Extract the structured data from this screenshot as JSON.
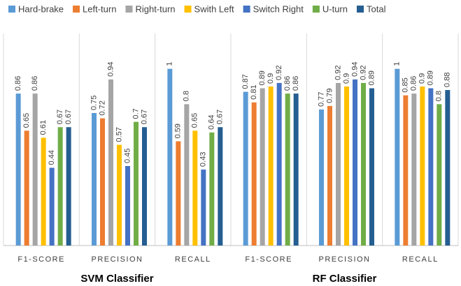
{
  "chart_data": {
    "type": "bar",
    "categories": [
      "F1-SCORE",
      "PRECISION",
      "RECALL",
      "F1-SCORE",
      "PRECISION",
      "RECALL"
    ],
    "category_groups": [
      "SVM Classifier",
      "RF Classifier"
    ],
    "series": [
      {
        "name": "Hard-brake",
        "color": "#5b9bd5",
        "values": [
          0.86,
          0.75,
          1,
          0.87,
          0.77,
          1
        ]
      },
      {
        "name": "Left-turn",
        "color": "#ed7d31",
        "values": [
          0.65,
          0.72,
          0.59,
          0.81,
          0.79,
          0.85
        ]
      },
      {
        "name": "Right-turn",
        "color": "#a5a5a5",
        "values": [
          0.86,
          0.94,
          0.8,
          0.89,
          0.92,
          0.86
        ]
      },
      {
        "name": "Swith Left",
        "color": "#ffc000",
        "values": [
          0.61,
          0.57,
          0.65,
          0.9,
          0.9,
          0.9
        ]
      },
      {
        "name": "Switch Right",
        "color": "#4472c4",
        "values": [
          0.44,
          0.45,
          0.43,
          0.92,
          0.94,
          0.89
        ]
      },
      {
        "name": "U-turn",
        "color": "#70ad47",
        "values": [
          0.67,
          0.7,
          0.64,
          0.86,
          0.92,
          0.8
        ]
      },
      {
        "name": "Total",
        "color": "#255e91",
        "values": [
          0.67,
          0.67,
          0.67,
          0.86,
          0.89,
          0.88
        ]
      }
    ],
    "ylim": [
      0,
      1.2
    ],
    "grid": false,
    "legend": "top"
  }
}
